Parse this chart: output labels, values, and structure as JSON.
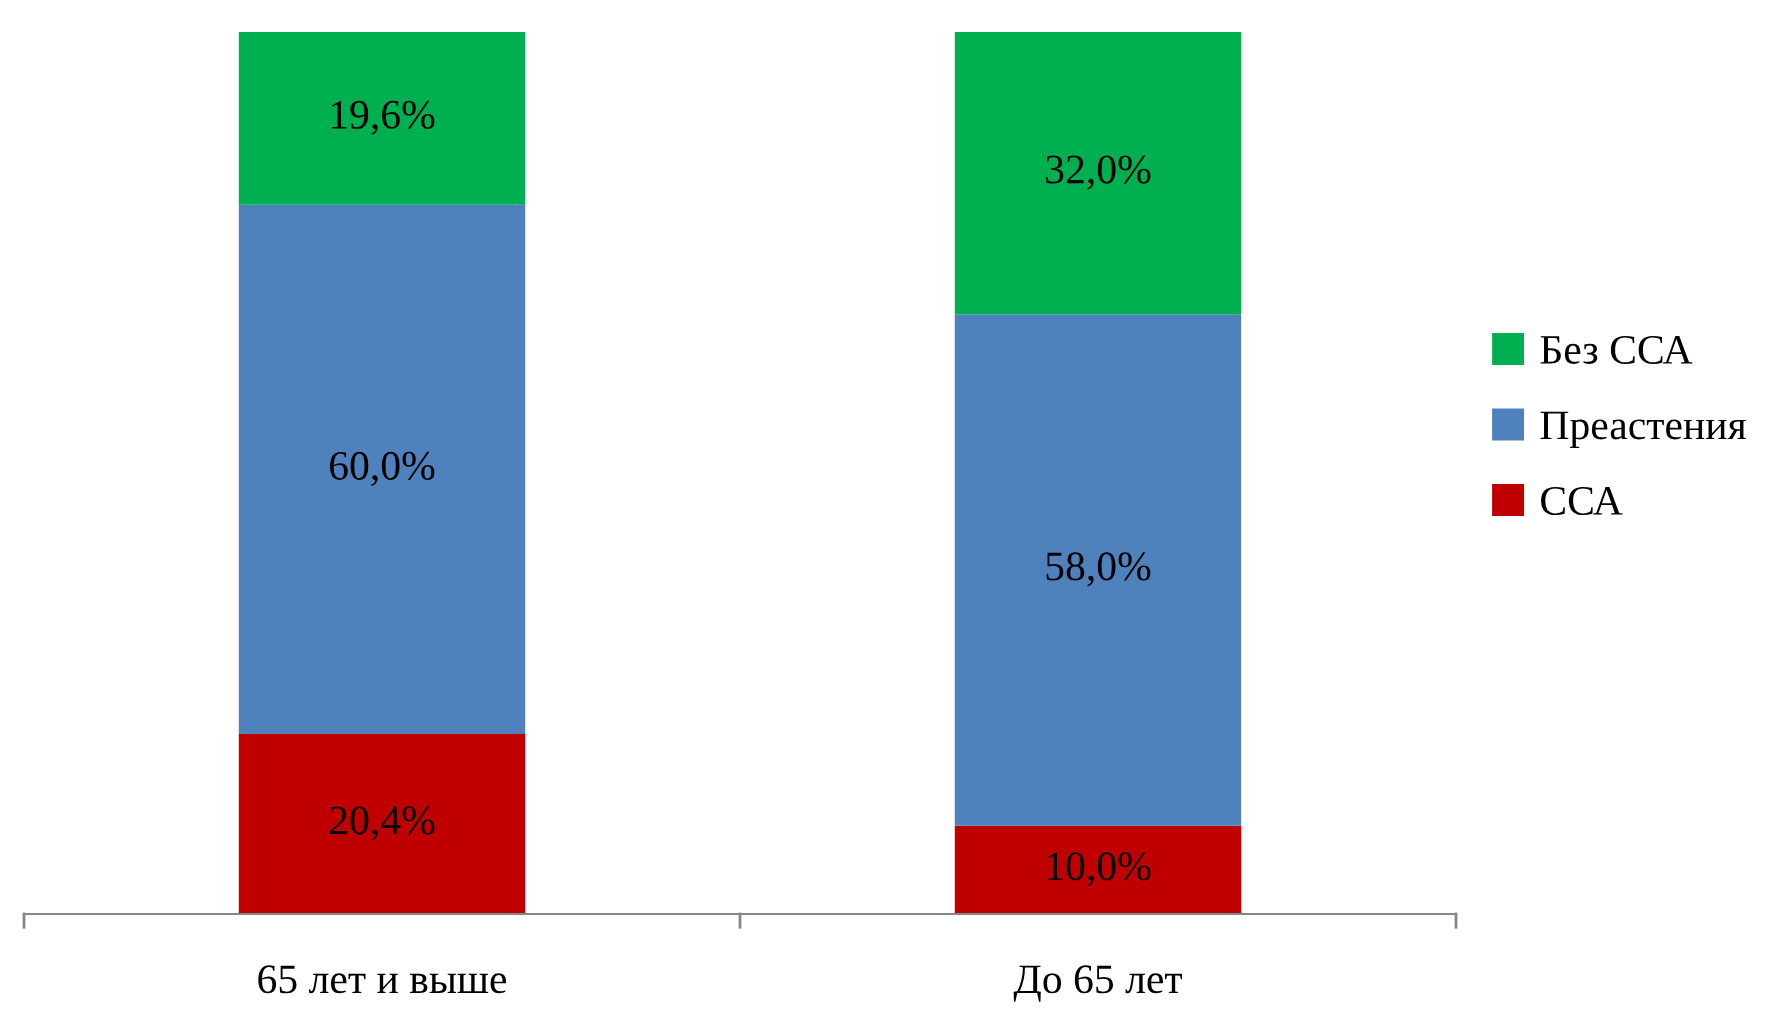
{
  "chart_data": {
    "type": "bar",
    "stacked": true,
    "categories": [
      "65 лет и выше",
      "До 65 лет"
    ],
    "series": [
      {
        "name": "ССА",
        "color": "#c00000",
        "values": [
          20.4,
          10.0
        ],
        "value_labels": [
          "20,4%",
          "10,0%"
        ]
      },
      {
        "name": "Преастения",
        "color": "#4f81bd",
        "values": [
          60.0,
          58.0
        ],
        "value_labels": [
          "60,0%",
          "58,0%"
        ]
      },
      {
        "name": "Без ССА",
        "color": "#00b050",
        "values": [
          19.6,
          32.0
        ],
        "value_labels": [
          "19,6%",
          "32,0%"
        ]
      }
    ],
    "legend": "right",
    "grid": false
  }
}
